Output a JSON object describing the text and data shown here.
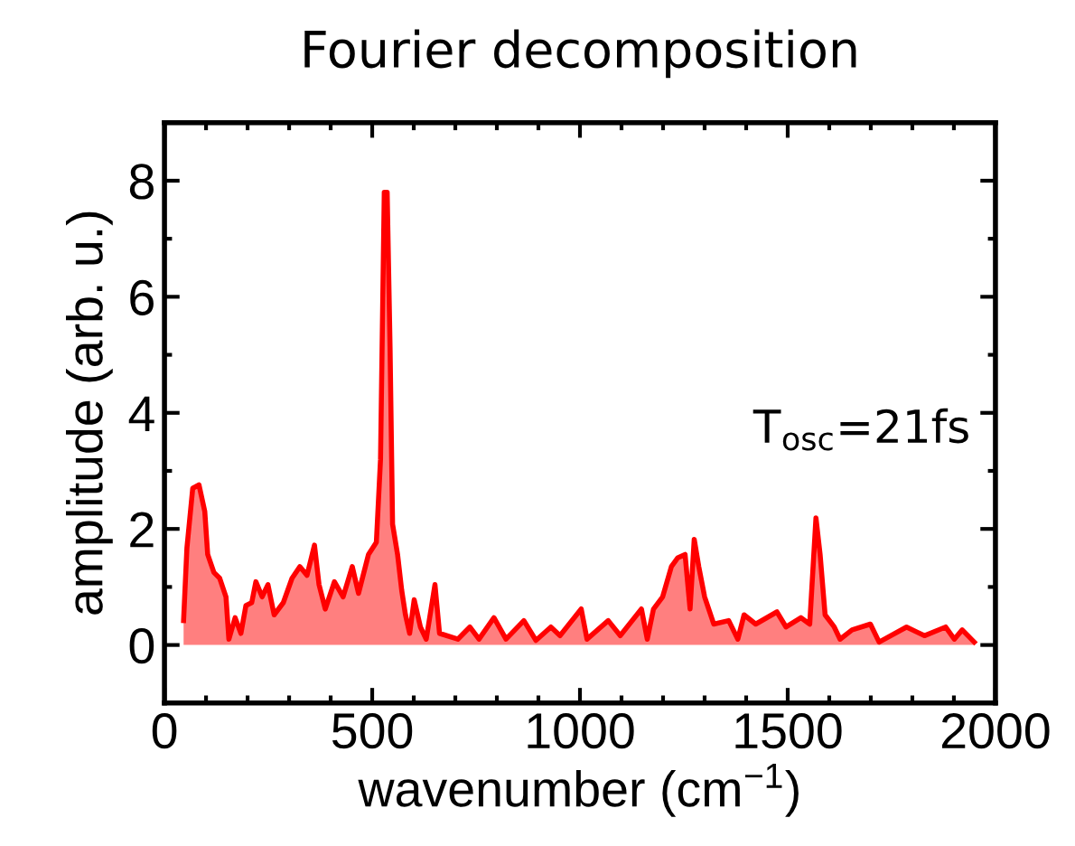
{
  "chart_data": {
    "type": "area",
    "title": "Fourier decomposition",
    "xlabel": "wavenumber (cm$^{−1}$)",
    "ylabel": "amplitude (arb. u.)",
    "annotations": [
      "T$_{osc}$=21fs"
    ],
    "xlim": [
      0,
      2000
    ],
    "xticks": [
      0,
      500,
      1000,
      1500,
      2000
    ],
    "ylim": [
      -1,
      9
    ],
    "yticks": [
      0,
      2,
      4,
      6,
      8
    ],
    "grid": false,
    "legend": false,
    "series": [
      {
        "color": "#ff0000",
        "x": [
          46,
          54,
          68,
          83,
          97,
          104,
          119,
          133,
          148,
          155,
          170,
          184,
          196,
          210,
          220,
          235,
          249,
          264,
          286,
          307,
          326,
          343,
          361,
          372,
          387,
          409,
          430,
          452,
          467,
          491,
          510,
          520,
          529,
          536,
          543,
          549,
          561,
          571,
          580,
          590,
          601,
          616,
          630,
          651,
          662,
          706,
          735,
          757,
          793,
          822,
          865,
          894,
          930,
          952,
          1003,
          1017,
          1068,
          1097,
          1119,
          1148,
          1162,
          1177,
          1199,
          1220,
          1235,
          1253,
          1265,
          1275,
          1286,
          1300,
          1322,
          1358,
          1380,
          1395,
          1423,
          1474,
          1496,
          1532,
          1553,
          1568,
          1578,
          1590,
          1612,
          1626,
          1655,
          1699,
          1720,
          1786,
          1829,
          1880,
          1901,
          1920,
          1949
        ],
        "values": [
          0.42,
          1.67,
          2.7,
          2.76,
          2.3,
          1.56,
          1.25,
          1.15,
          0.83,
          0.1,
          0.47,
          0.2,
          0.68,
          0.73,
          1.09,
          0.83,
          1.04,
          0.52,
          0.73,
          1.15,
          1.35,
          1.2,
          1.72,
          1.04,
          0.62,
          1.09,
          0.83,
          1.35,
          0.89,
          1.56,
          1.77,
          3.2,
          7.8,
          7.8,
          5.1,
          2.08,
          1.56,
          0.94,
          0.52,
          0.2,
          0.78,
          0.31,
          0.1,
          1.04,
          0.2,
          0.1,
          0.31,
          0.1,
          0.47,
          0.1,
          0.42,
          0.08,
          0.31,
          0.16,
          0.62,
          0.1,
          0.42,
          0.16,
          0.36,
          0.62,
          0.1,
          0.62,
          0.83,
          1.35,
          1.5,
          1.56,
          0.62,
          1.82,
          1.35,
          0.83,
          0.36,
          0.42,
          0.1,
          0.52,
          0.36,
          0.57,
          0.31,
          0.47,
          0.36,
          2.19,
          1.56,
          0.52,
          0.31,
          0.1,
          0.26,
          0.36,
          0.05,
          0.31,
          0.16,
          0.31,
          0.1,
          0.26,
          0.05
        ]
      }
    ]
  }
}
